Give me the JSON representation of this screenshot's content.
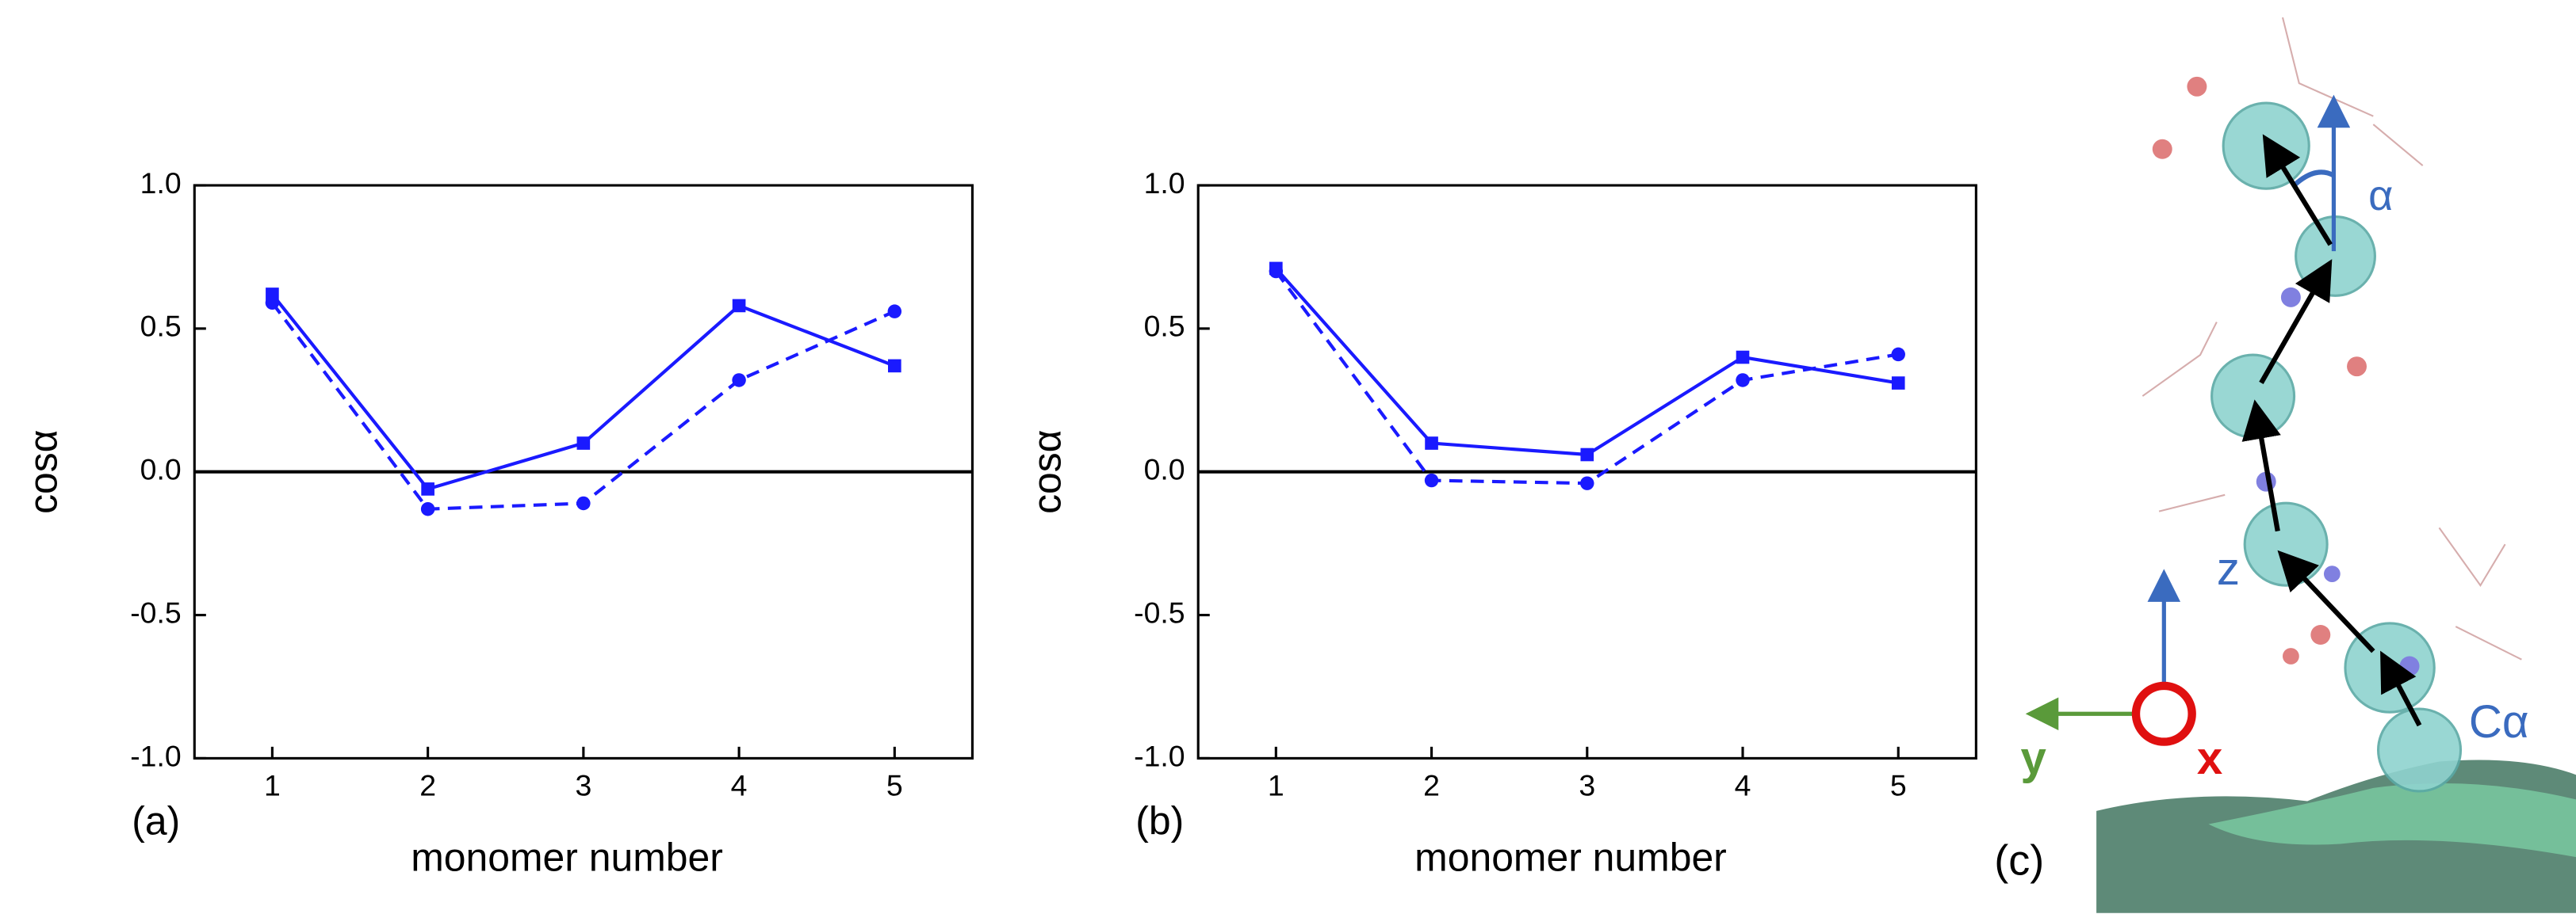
{
  "chart_data": [
    {
      "type": "line",
      "panel_label": "(a)",
      "xlabel": "monomer number",
      "ylabel": "cosα",
      "x": [
        1,
        2,
        3,
        4,
        5
      ],
      "xlim": [
        0.5,
        5.5
      ],
      "xticks": [
        1,
        2,
        3,
        4,
        5
      ],
      "ylim": [
        -1,
        1
      ],
      "yticks": [
        {
          "value": -1,
          "label": "-1.0"
        },
        -0.5,
        {
          "value": 0,
          "label": "0.0"
        },
        0.5,
        {
          "value": 1,
          "label": "1.0"
        }
      ],
      "hline": 0,
      "series": [
        {
          "color": "#1a1aff",
          "linestyle": "solid",
          "marker": "square",
          "values": [
            0.62,
            -0.06,
            0.1,
            0.58,
            0.37
          ]
        },
        {
          "color": "#1a1aff",
          "linestyle": "dashed",
          "marker": "circle",
          "values": [
            0.59,
            -0.13,
            -0.11,
            0.32,
            0.56
          ]
        }
      ]
    },
    {
      "type": "line",
      "panel_label": "(b)",
      "xlabel": "monomer number",
      "ylabel": "cosα",
      "x": [
        1,
        2,
        3,
        4,
        5
      ],
      "xlim": [
        0.5,
        5.5
      ],
      "xticks": [
        1,
        2,
        3,
        4,
        5
      ],
      "ylim": [
        -1,
        1
      ],
      "yticks": [
        {
          "value": -1,
          "label": "-1.0"
        },
        -0.5,
        {
          "value": 0,
          "label": "0.0"
        },
        0.5,
        {
          "value": 1,
          "label": "1.0"
        }
      ],
      "hline": 0,
      "series": [
        {
          "color": "#1a1aff",
          "linestyle": "solid",
          "marker": "square",
          "values": [
            0.71,
            0.1,
            0.06,
            0.4,
            0.31
          ]
        },
        {
          "color": "#1a1aff",
          "linestyle": "dashed",
          "marker": "circle",
          "values": [
            0.7,
            -0.03,
            -0.04,
            0.32,
            0.41
          ]
        }
      ]
    }
  ],
  "diagram": {
    "panel_label": "(c)",
    "angle_label": "α",
    "z_label": "z",
    "y_label": "y",
    "x_label": "x",
    "atom_label": "Cα"
  }
}
